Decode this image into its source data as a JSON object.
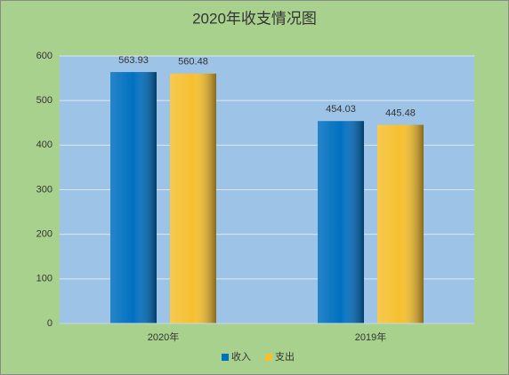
{
  "chart_data": {
    "type": "bar",
    "title": "2020年收支情况图",
    "categories": [
      "2020年",
      "2019年"
    ],
    "series": [
      {
        "name": "收入",
        "color": "#0070c0",
        "values": [
          563.93,
          454.03
        ]
      },
      {
        "name": "支出",
        "color": "#f5c030",
        "values": [
          560.48,
          445.48
        ]
      }
    ],
    "ylim": [
      0,
      600
    ],
    "yticks": [
      0,
      100,
      200,
      300,
      400,
      500,
      600
    ],
    "grid": true,
    "legend": "bottom"
  }
}
